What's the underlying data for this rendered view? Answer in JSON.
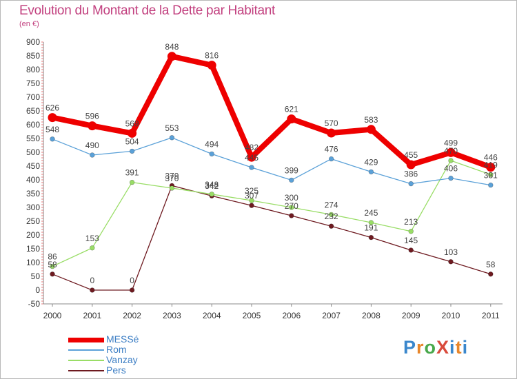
{
  "header": {
    "title": "Evolution du Montant de la Dette par Habitant",
    "subtitle": "(en €)"
  },
  "logo": {
    "text": "ProXiti",
    "parts": [
      "P",
      "r",
      "o",
      "X",
      "i",
      "t",
      "i"
    ]
  },
  "chart_data": {
    "type": "line",
    "title": "Evolution du Montant de la Dette par Habitant",
    "subtitle": "(en €)",
    "xlabel": "",
    "ylabel": "",
    "x": [
      "2000",
      "2001",
      "2002",
      "2003",
      "2004",
      "2005",
      "2006",
      "2007",
      "2008",
      "2009",
      "2010",
      "2011"
    ],
    "ylim": [
      -50,
      900
    ],
    "yticks": [
      -50,
      0,
      50,
      100,
      150,
      200,
      250,
      300,
      350,
      400,
      450,
      500,
      550,
      600,
      650,
      700,
      750,
      800,
      850,
      900
    ],
    "grid": false,
    "legend_position": "bottom-left",
    "series": [
      {
        "name": "Pers",
        "color": "#6e1a20",
        "values": [
          58,
          0,
          0,
          379,
          342,
          307,
          270,
          232,
          191,
          145,
          103,
          58
        ],
        "labels": [
          "58",
          "0",
          "0",
          "379",
          "342",
          "307",
          "270",
          "232",
          "191",
          "145",
          "103",
          "58"
        ]
      },
      {
        "name": "Vanzay",
        "color": "#99dd66",
        "values": [
          86,
          153,
          391,
          370,
          348,
          325,
          300,
          274,
          245,
          213,
          470,
          419
        ],
        "labels": [
          "86",
          "153",
          "391",
          "370",
          "348",
          "325",
          "300",
          "274",
          "245",
          "213",
          "470",
          "419"
        ]
      },
      {
        "name": "Rom",
        "color": "#5ba1d8",
        "values": [
          548,
          490,
          504,
          553,
          494,
          445,
          399,
          476,
          429,
          386,
          406,
          381
        ],
        "labels": [
          "548",
          "490",
          "504",
          "553",
          "494",
          "445",
          "399",
          "476",
          "429",
          "386",
          "406",
          "381"
        ]
      },
      {
        "name": "MESSé",
        "color": "#ee0000",
        "values": [
          626,
          596,
          569,
          848,
          816,
          482,
          621,
          570,
          583,
          455,
          499,
          446
        ],
        "labels": [
          "626",
          "596",
          "569",
          "848",
          "816",
          "482",
          "621",
          "570",
          "583",
          "455",
          "499",
          "446"
        ]
      }
    ],
    "legend": [
      "MESSé",
      "Rom",
      "Vanzay",
      "Pers"
    ]
  }
}
